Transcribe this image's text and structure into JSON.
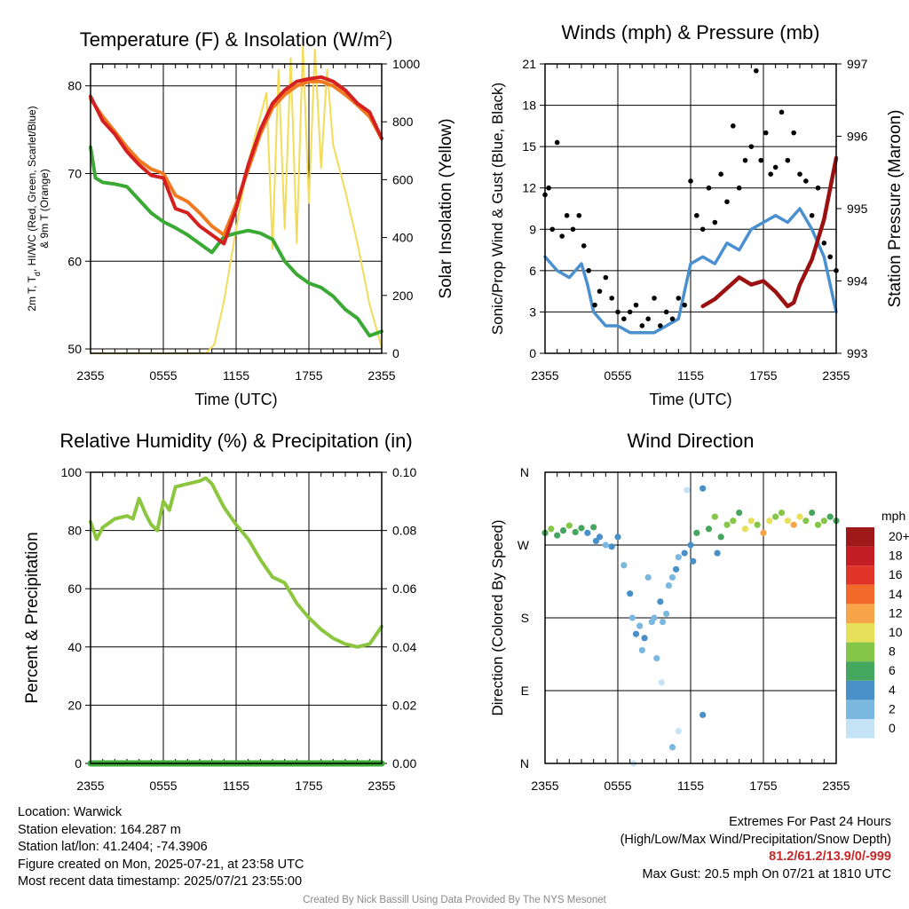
{
  "colors": {
    "temp": "#d42020",
    "heat_index": "#f07a20",
    "dewpoint": "#3aaa35",
    "insolation": "#f2dc5a",
    "wind": "#4a90d0",
    "gust": "#000000",
    "pressure": "#9b1111",
    "rh": "#8cc63f",
    "precip": "#3aaa35"
  },
  "chart_data": [
    {
      "id": "temperature",
      "type": "line",
      "title": "Temperature (F) & Insolation (W/m²)",
      "xlabel": "Time (UTC)",
      "ylabel": "2m T, Td, HI/WC (Red, Green, Scarlet/Blue) & 9m T (Orange)",
      "ylabel_lines": [
        "2m T, T",
        "d",
        ", HI/WC (Red, Green, Scarlet/Blue)",
        "& 9m T (Orange)"
      ],
      "y2label": "Solar Insolation (Yellow)",
      "xticks": [
        "2355",
        "0555",
        "1155",
        "1755",
        "2355"
      ],
      "xlim": [
        0,
        24
      ],
      "ylim": [
        49.5,
        82.5
      ],
      "yticks": [
        50,
        60,
        70,
        80
      ],
      "y2lim": [
        0,
        1000
      ],
      "y2ticks": [
        0,
        200,
        400,
        600,
        800,
        1000
      ],
      "series": [
        {
          "name": "2m T",
          "x": [
            0,
            1,
            2,
            3,
            4,
            5,
            6,
            7,
            8,
            9,
            10,
            11,
            12,
            13,
            14,
            15,
            16,
            17,
            18,
            19,
            20,
            21,
            22,
            23,
            24
          ],
          "values": [
            78.8,
            76,
            74.5,
            72.5,
            71,
            69.8,
            69.5,
            66,
            65.5,
            64,
            63,
            62,
            66,
            71,
            75,
            78,
            79.5,
            80.5,
            80.8,
            81,
            80.5,
            79.5,
            78,
            77,
            74
          ]
        },
        {
          "name": "9m T",
          "x": [
            0,
            1,
            2,
            3,
            4,
            5,
            6,
            7,
            8,
            9,
            10,
            11,
            12,
            13,
            14,
            15,
            16,
            17,
            18,
            19,
            20,
            21,
            22,
            23,
            24
          ],
          "values": [
            78.5,
            76.5,
            74.8,
            73,
            71.5,
            70.5,
            70,
            67.5,
            66.8,
            65.5,
            64,
            63,
            66.5,
            70.5,
            74.5,
            77.5,
            79,
            80,
            80.5,
            80.5,
            80,
            79,
            77.8,
            76.5,
            74
          ]
        },
        {
          "name": "Td",
          "x": [
            0,
            0.4,
            1,
            2,
            3,
            4,
            5,
            6,
            7,
            8,
            9,
            10,
            11,
            12,
            13,
            14,
            15,
            16,
            17,
            18,
            19,
            20,
            21,
            22,
            23,
            24
          ],
          "values": [
            73,
            69.5,
            69,
            68.8,
            68.5,
            67,
            65.5,
            64.5,
            63.8,
            63,
            62,
            61,
            62.8,
            63.2,
            63.5,
            63.2,
            62.5,
            60,
            58.5,
            57.5,
            57,
            56,
            54.5,
            53.5,
            51.5,
            52
          ]
        },
        {
          "name": "Insolation",
          "axis": "y2",
          "x": [
            0,
            9.5,
            10.2,
            11,
            12,
            13,
            14,
            14.5,
            15,
            15.5,
            16,
            16.5,
            17,
            17.5,
            18,
            18.5,
            19,
            19.5,
            20,
            21,
            22,
            23,
            24
          ],
          "values": [
            0,
            0,
            30,
            180,
            430,
            660,
            820,
            900,
            360,
            980,
            430,
            1020,
            380,
            1060,
            520,
            1050,
            640,
            980,
            720,
            560,
            380,
            170,
            20
          ]
        }
      ]
    },
    {
      "id": "winds",
      "type": "scatter",
      "title": "Winds (mph) & Pressure (mb)",
      "xlabel": "Time (UTC)",
      "ylabel": "Sonic/Prop Wind & Gust (Blue, Black)",
      "y2label": "Station Pressure (Maroon)",
      "xticks": [
        "2355",
        "0555",
        "1155",
        "1755",
        "2355"
      ],
      "xlim": [
        0,
        24
      ],
      "ylim": [
        0,
        21
      ],
      "yticks": [
        0,
        3,
        6,
        9,
        12,
        15,
        18,
        21
      ],
      "y2lim": [
        993,
        997
      ],
      "y2ticks": [
        993,
        994,
        995,
        996,
        997
      ],
      "series": [
        {
          "name": "Wind",
          "type": "line",
          "x": [
            0,
            1,
            2,
            3,
            3.5,
            4,
            5,
            6,
            7,
            8,
            9,
            10,
            11,
            12,
            13,
            14,
            15,
            16,
            17,
            18,
            19,
            20,
            21,
            22,
            23,
            24
          ],
          "values": [
            7,
            6,
            5.5,
            6.5,
            5,
            3,
            2,
            2,
            1.5,
            1.5,
            1.5,
            2,
            2.5,
            6.5,
            7,
            6.5,
            8,
            7.5,
            9,
            9.5,
            10,
            9.5,
            10.5,
            9,
            7,
            3
          ]
        },
        {
          "name": "Gust",
          "type": "points",
          "x": [
            0,
            0.3,
            0.6,
            1,
            1.4,
            1.8,
            2.3,
            2.8,
            3.2,
            3.6,
            4.1,
            4.5,
            5,
            5.5,
            6,
            6.5,
            7,
            7.5,
            8,
            8.5,
            9,
            9.5,
            10,
            10.5,
            11,
            11.5,
            12,
            12.5,
            13,
            13.5,
            14,
            14.5,
            15,
            15.5,
            16,
            16.5,
            17,
            17.4,
            17.8,
            18.2,
            18.6,
            19,
            19.5,
            20,
            20.5,
            21,
            21.5,
            22,
            22.5,
            23,
            23.5,
            24
          ],
          "values": [
            11.5,
            12,
            9,
            15.3,
            8.5,
            10,
            9,
            10,
            7.8,
            6,
            3.5,
            4.5,
            5.5,
            4,
            3,
            2.5,
            3,
            3.5,
            2,
            2.5,
            4,
            2,
            3,
            2.5,
            4,
            3.5,
            12.5,
            10,
            9,
            12,
            9.5,
            13,
            11,
            16.5,
            12,
            14,
            15,
            20.5,
            14,
            16,
            13,
            13.5,
            17.5,
            14,
            16,
            13,
            12.5,
            10,
            12,
            8,
            7,
            6
          ]
        },
        {
          "name": "Pressure",
          "type": "line",
          "axis": "y2",
          "x": [
            13,
            14,
            15,
            16,
            17,
            18,
            19,
            20,
            20.5,
            21,
            22,
            23,
            24
          ],
          "values": [
            993.65,
            993.75,
            993.9,
            994.05,
            993.95,
            994.0,
            993.85,
            993.65,
            993.7,
            993.95,
            994.3,
            994.85,
            995.7
          ]
        }
      ]
    },
    {
      "id": "humidity",
      "type": "line",
      "title": "Relative Humidity (%) & Precipitation (in)",
      "xlabel": "",
      "ylabel": "Percent & Precipitation",
      "xticks": [
        "2355",
        "0555",
        "1155",
        "1755",
        "2355"
      ],
      "xlim": [
        0,
        24
      ],
      "ylim": [
        0,
        100
      ],
      "yticks": [
        0,
        20,
        40,
        60,
        80,
        100
      ],
      "y2lim": [
        0,
        0.1
      ],
      "y2ticks": [
        "0.00",
        "0.02",
        "0.04",
        "0.06",
        "0.08",
        "0.10"
      ],
      "series": [
        {
          "name": "RH",
          "x": [
            0,
            0.5,
            1,
            2,
            3,
            3.5,
            4,
            4.5,
            5,
            5.5,
            6,
            6.5,
            7,
            8,
            9,
            9.5,
            10,
            11,
            12,
            13,
            14,
            15,
            16,
            17,
            18,
            19,
            20,
            21,
            22,
            23,
            24
          ],
          "values": [
            83,
            77,
            81,
            84,
            85,
            84,
            91,
            86,
            82,
            80,
            90,
            87,
            95,
            96,
            97,
            98,
            96,
            88,
            82,
            77,
            70,
            64,
            62,
            55,
            50,
            46,
            43,
            41,
            40,
            41,
            47
          ]
        },
        {
          "name": "Precipitation",
          "axis": "y2",
          "x": [
            0,
            24
          ],
          "values": [
            0,
            0
          ]
        }
      ]
    },
    {
      "id": "direction",
      "type": "scatter",
      "title": "Wind Direction",
      "xlabel": "",
      "ylabel": "Direction (Colored By Speed)",
      "xticks": [
        "2355",
        "0555",
        "1155",
        "1755",
        "2355"
      ],
      "xlim": [
        0,
        24
      ],
      "ylim": [
        0,
        360
      ],
      "yticks": [
        "N",
        "E",
        "S",
        "W",
        "N"
      ],
      "legend": {
        "title": "mph",
        "labels": [
          "20+",
          "18",
          "16",
          "14",
          "12",
          "10",
          "8",
          "6",
          "4",
          "2",
          "0"
        ],
        "colors": [
          "#9e1a1a",
          "#c41e24",
          "#e03428",
          "#f26a2a",
          "#f7a548",
          "#e6e05a",
          "#85c547",
          "#45a75d",
          "#4a90c8",
          "#7ab8e0",
          "#c4e4f6"
        ],
        "placement": "right"
      },
      "points": [
        [
          0,
          285,
          6
        ],
        [
          0.5,
          290,
          7
        ],
        [
          1,
          282,
          5
        ],
        [
          1.5,
          288,
          6
        ],
        [
          2,
          294,
          7
        ],
        [
          2.5,
          286,
          5
        ],
        [
          3,
          291,
          6
        ],
        [
          3.5,
          285,
          4
        ],
        [
          4,
          292,
          5
        ],
        [
          4.5,
          280,
          3
        ],
        [
          4.2,
          275,
          4
        ],
        [
          5,
          270,
          2
        ],
        [
          5.5,
          268,
          3
        ],
        [
          6,
          280,
          3
        ],
        [
          6.5,
          245,
          2
        ],
        [
          7,
          210,
          3
        ],
        [
          7.2,
          180,
          2
        ],
        [
          7.5,
          160,
          3
        ],
        [
          7.8,
          170,
          2
        ],
        [
          8,
          140,
          2
        ],
        [
          8.2,
          155,
          3
        ],
        [
          8.5,
          230,
          1
        ],
        [
          8.8,
          175,
          1
        ],
        [
          9,
          180,
          2
        ],
        [
          9.2,
          130,
          2
        ],
        [
          9.5,
          200,
          3
        ],
        [
          9.7,
          175,
          2
        ],
        [
          10,
          185,
          1
        ],
        [
          10.2,
          220,
          2
        ],
        [
          10.5,
          230,
          2
        ],
        [
          10.8,
          240,
          3
        ],
        [
          11,
          255,
          2
        ],
        [
          11.5,
          260,
          3
        ],
        [
          12,
          270,
          3
        ],
        [
          12.2,
          250,
          4
        ],
        [
          12.5,
          285,
          6
        ],
        [
          9.6,
          100,
          0
        ],
        [
          10.5,
          20,
          2
        ],
        [
          11,
          40,
          0
        ],
        [
          13,
          340,
          4
        ],
        [
          13,
          60,
          3
        ],
        [
          13.5,
          290,
          5
        ],
        [
          14,
          305,
          7
        ],
        [
          14.2,
          260,
          4
        ],
        [
          14.5,
          280,
          6
        ],
        [
          15,
          295,
          7
        ],
        [
          15.5,
          300,
          8
        ],
        [
          16,
          310,
          6
        ],
        [
          16.5,
          290,
          9
        ],
        [
          17,
          300,
          10
        ],
        [
          17.5,
          295,
          8
        ],
        [
          18,
          285,
          11
        ],
        [
          18.5,
          300,
          9
        ],
        [
          19,
          305,
          7
        ],
        [
          19.5,
          310,
          8
        ],
        [
          20,
          300,
          10
        ],
        [
          20.5,
          295,
          12
        ],
        [
          21,
          305,
          9
        ],
        [
          21.5,
          300,
          7
        ],
        [
          22,
          310,
          6
        ],
        [
          22.5,
          295,
          8
        ],
        [
          23,
          300,
          7
        ],
        [
          23.5,
          305,
          6
        ],
        [
          24,
          300,
          5
        ],
        [
          11.7,
          338,
          0
        ],
        [
          7.3,
          0,
          0
        ]
      ]
    }
  ],
  "info": {
    "location": "Location: Warwick",
    "elevation": "Station elevation: 164.287 m",
    "latlon": "Station lat/lon: 41.2404; -74.3906",
    "created": "Figure created on Mon, 2025-07-21, at 23:58 UTC",
    "recent": "Most recent data timestamp: 2025/07/21 23:55:00"
  },
  "extremes": {
    "title": "Extremes For Past 24 Hours",
    "subtitle": "(High/Low/Max Wind/Precipitation/Snow Depth)",
    "values": "81.2/61.2/13.9/0/-999",
    "gust": "Max Gust: 20.5 mph On 07/21 at 1810 UTC"
  },
  "credit": "Created By Nick Bassill Using Data Provided By The NYS Mesonet"
}
